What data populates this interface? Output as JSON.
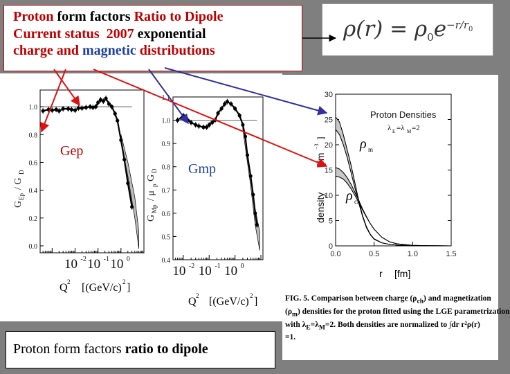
{
  "slide": {
    "title_lines": [
      {
        "segments": [
          {
            "text": "Proton",
            "style": "red"
          },
          {
            "text": " form factors ",
            "style": "black"
          },
          {
            "text": "Ratio to Dipole",
            "style": "red"
          }
        ]
      },
      {
        "segments": [
          {
            "text": "Current status  2007",
            "style": "red"
          },
          {
            "text": " exponential",
            "style": "black"
          }
        ]
      },
      {
        "segments": [
          {
            "text": "charge and ",
            "style": "red"
          },
          {
            "text": "magnetic",
            "style": "blue"
          },
          {
            "text": " distributions",
            "style": "red"
          }
        ]
      }
    ],
    "formula": "ρ(r) = ρ₀e^(−r/r₀)",
    "formula_parts": {
      "lhs": "ρ(r) = ρ",
      "sub": "0",
      "base": "e",
      "exp": "−r/r",
      "exp_sub": "0"
    },
    "caption": {
      "part1": "Proton",
      "part2": " form factors ",
      "part3": "ratio to dipole"
    },
    "figure_caption": "FIG. 5. Comparison between charge (ρch) and magnetization (ρm) densities for the proton fitted using the LGE parametrization with λE=λM=2. Both densities are normalized to ∫dr r²ρ(r) =1.",
    "figure_caption_parts": {
      "l1": "FIG. 5.  Comparison between charge (ρ",
      "l1_sub": "ch",
      "l1_end": ") and magnetization",
      "l2": "(ρ",
      "l2_sub": "m",
      "l2_end": ") densities for the proton fitted using the LGE parametrization",
      "l3": "with λ",
      "l3_sub1": "E",
      "l3_mid": "=λ",
      "l3_sub2": "M",
      "l3_end": "=2.  Both densities are normalized to ∫dr r²ρ(r)",
      "l4": "=1."
    }
  },
  "colors": {
    "red": "#c00000",
    "blue": "#1f3f9f",
    "arrow_red": "#e01010",
    "arrow_blue": "#3030a0",
    "background": "#7f7f7f"
  },
  "chart_data": [
    {
      "type": "scatter",
      "name": "Gep",
      "label": "Gep",
      "ylabel": "G_Ep / G_D",
      "xlabel": "Q² [(GeV/c)²]",
      "xscale": "log",
      "xlim": [
        0.0003,
        10
      ],
      "ylim": [
        -0.05,
        1.12
      ],
      "xticks": [
        {
          "v": 0.01,
          "label": "10",
          "exp": "-2"
        },
        {
          "v": 0.1,
          "label": "10",
          "exp": "-1"
        },
        {
          "v": 1,
          "label": "10",
          "exp": "0"
        }
      ],
      "yticks": [
        {
          "v": 0,
          "label": "0.0"
        },
        {
          "v": 0.2,
          "label": "0.2"
        },
        {
          "v": 0.4,
          "label": "0.4"
        },
        {
          "v": 0.6,
          "label": "0.6"
        },
        {
          "v": 0.8,
          "label": "0.8"
        },
        {
          "v": 1.0,
          "label": "1.0"
        }
      ],
      "x": [
        0.0004,
        0.0007,
        0.001,
        0.0015,
        0.002,
        0.003,
        0.005,
        0.007,
        0.01,
        0.014,
        0.02,
        0.03,
        0.045,
        0.06,
        0.08,
        0.1,
        0.13,
        0.17,
        0.22,
        0.3,
        0.4,
        0.55,
        0.7,
        1.0,
        1.4,
        2.0,
        3.0
      ],
      "y": [
        0.97,
        0.98,
        0.975,
        0.98,
        0.97,
        0.985,
        0.985,
        0.98,
        0.975,
        0.99,
        0.99,
        0.995,
        1.0,
        0.995,
        1.0,
        1.03,
        1.05,
        1.04,
        1.06,
        1.02,
        1.0,
        0.95,
        0.9,
        0.76,
        0.62,
        0.45,
        0.28
      ],
      "band": {
        "x": [
          1.0,
          2.0,
          4.0,
          6.0
        ],
        "upper": [
          0.8,
          0.6,
          0.35,
          0.1
        ],
        "lower": [
          0.74,
          0.5,
          0.2,
          -0.02
        ]
      }
    },
    {
      "type": "scatter",
      "name": "Gmp",
      "label": "Gmp",
      "ylabel": "G_Mp / μ_p G_D",
      "xlabel": "Q² [(GeV/c)²]",
      "xscale": "log",
      "xlim": [
        0.004,
        12
      ],
      "ylim": [
        0.4,
        1.1
      ],
      "xticks": [
        {
          "v": 0.01,
          "label": "10",
          "exp": "-2"
        },
        {
          "v": 0.1,
          "label": "10",
          "exp": "-1"
        },
        {
          "v": 1,
          "label": "10",
          "exp": "0"
        }
      ],
      "yticks": [
        {
          "v": 0.4,
          "label": "0.4"
        },
        {
          "v": 0.5,
          "label": "0.5"
        },
        {
          "v": 0.6,
          "label": "0.6"
        },
        {
          "v": 0.7,
          "label": "0.7"
        },
        {
          "v": 0.8,
          "label": "0.8"
        },
        {
          "v": 0.9,
          "label": "0.9"
        },
        {
          "v": 1.0,
          "label": "1.0"
        },
        {
          "v": 1.1,
          "label": "1.1"
        }
      ],
      "x": [
        0.006,
        0.01,
        0.015,
        0.02,
        0.03,
        0.04,
        0.06,
        0.08,
        0.1,
        0.13,
        0.17,
        0.22,
        0.3,
        0.4,
        0.5,
        0.7,
        1.0,
        1.5,
        2.0,
        2.5,
        3.0,
        4.0,
        5.0,
        6.0,
        7.0
      ],
      "y": [
        1.0,
        1.02,
        1.0,
        0.99,
        0.98,
        0.975,
        0.97,
        0.97,
        0.98,
        0.99,
        1.0,
        1.03,
        1.05,
        1.07,
        1.08,
        1.07,
        1.05,
        1.02,
        0.98,
        0.93,
        0.85,
        0.76,
        0.68,
        0.6,
        0.55
      ],
      "band": {
        "x": [
          2.0,
          4.0,
          6.0,
          9.0
        ],
        "upper": [
          0.98,
          0.77,
          0.62,
          0.52
        ],
        "lower": [
          0.96,
          0.72,
          0.55,
          0.44
        ]
      }
    },
    {
      "type": "line",
      "name": "Proton Densities",
      "title": "Proton Densities",
      "subtitle": "λ_E=λ_M=2",
      "xlabel": "r  [fm]",
      "ylabel": "density  [fm⁻³]",
      "xlim": [
        0.0,
        1.5
      ],
      "ylim": [
        0,
        30
      ],
      "xticks": [
        {
          "v": 0.0,
          "label": "0.0"
        },
        {
          "v": 0.5,
          "label": "0.5"
        },
        {
          "v": 1.0,
          "label": "1.0"
        },
        {
          "v": 1.5,
          "label": "1.5"
        }
      ],
      "yticks": [
        {
          "v": 0,
          "label": "0"
        },
        {
          "v": 5,
          "label": "5"
        },
        {
          "v": 10,
          "label": "10"
        },
        {
          "v": 15,
          "label": "15"
        },
        {
          "v": 20,
          "label": "20"
        },
        {
          "v": 25,
          "label": "25"
        },
        {
          "v": 30,
          "label": "30"
        }
      ],
      "series": [
        {
          "name": "ρm",
          "x": [
            0.0,
            0.05,
            0.1,
            0.15,
            0.2,
            0.25,
            0.3,
            0.35,
            0.4,
            0.45,
            0.5,
            0.6,
            0.7,
            0.8,
            1.0,
            1.2,
            1.5
          ],
          "upper": [
            25.5,
            24.5,
            22.0,
            19.0,
            16.0,
            12.5,
            9.0,
            6.0,
            3.8,
            2.3,
            1.4,
            0.6,
            0.3,
            0.15,
            0.05,
            0.02,
            0.0
          ],
          "lower": [
            23.0,
            22.0,
            20.0,
            17.5,
            14.5,
            11.5,
            8.5,
            5.8,
            3.6,
            2.2,
            1.3,
            0.6,
            0.3,
            0.15,
            0.05,
            0.02,
            0.0
          ]
        },
        {
          "name": "ρch",
          "x": [
            0.0,
            0.05,
            0.1,
            0.15,
            0.2,
            0.25,
            0.3,
            0.35,
            0.4,
            0.45,
            0.5,
            0.6,
            0.7,
            0.8,
            1.0,
            1.2,
            1.5
          ],
          "upper": [
            15.5,
            15.2,
            14.5,
            13.5,
            12.2,
            10.6,
            9.0,
            7.3,
            5.8,
            4.4,
            3.3,
            1.7,
            0.8,
            0.4,
            0.1,
            0.03,
            0.0
          ],
          "lower": [
            13.8,
            13.6,
            13.2,
            12.4,
            11.3,
            10.0,
            8.6,
            7.1,
            5.7,
            4.4,
            3.3,
            1.7,
            0.8,
            0.4,
            0.1,
            0.03,
            0.0
          ]
        }
      ]
    }
  ]
}
